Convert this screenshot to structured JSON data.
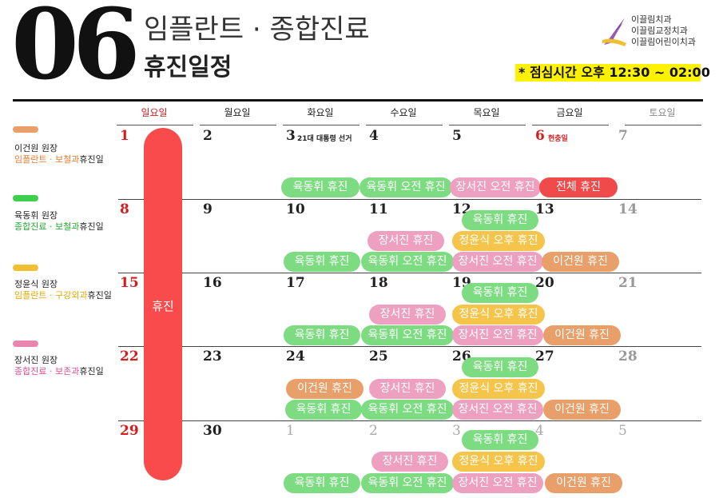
{
  "header": {
    "month": "06",
    "title_line1": "임플란트 · 종합진료",
    "title_line2": "휴진일정",
    "clinics": [
      "이끌림치과",
      "이끌림교정치과",
      "이끌림어린이치과"
    ],
    "lunch_label": "* 점심시간",
    "lunch_time": "오후 12:30 ~ 02:00"
  },
  "weekdays": [
    "일요일",
    "월요일",
    "화요일",
    "수요일",
    "목요일",
    "금요일",
    "토요일"
  ],
  "legend": [
    {
      "color": "#e89f6a",
      "name": "이건원 원장",
      "dept": "임플란트 · 보철과",
      "suffix": "휴진일"
    },
    {
      "color": "#3fcf4f",
      "name": "육동휘 원장",
      "dept": "종합진료 · 보철과",
      "suffix": "휴진일"
    },
    {
      "color": "#f0c030",
      "name": "정윤식 원장",
      "dept": "임플란트 · 구강외과",
      "suffix": "휴진일"
    },
    {
      "color": "#e986b0",
      "name": "장서진 원장",
      "dept": "종합진료 · 보존과",
      "suffix": "휴진일"
    }
  ],
  "sunday_closed": "휴진",
  "weeks": [
    {
      "dates": [
        "1",
        "2",
        "3",
        "4",
        "5",
        "6",
        "7"
      ],
      "notes": {
        "tue": "21대 대통령 선거",
        "fri": "현충일"
      }
    },
    {
      "dates": [
        "8",
        "9",
        "10",
        "11",
        "12",
        "13",
        "14"
      ]
    },
    {
      "dates": [
        "15",
        "16",
        "17",
        "18",
        "19",
        "20",
        "21"
      ]
    },
    {
      "dates": [
        "22",
        "23",
        "24",
        "25",
        "26",
        "27",
        "28"
      ]
    },
    {
      "dates": [
        "29",
        "30",
        "1",
        "2",
        "3",
        "4",
        "5"
      ]
    }
  ],
  "events": {
    "yuk_full": "육동휘 휴진",
    "yuk_am": "육동휘 오전 휴진",
    "jang_am": "장서진 오전 휴진",
    "jang_full": "장서진 휴진",
    "jung_pm": "정윤식 오후 휴진",
    "lee_full": "이건원 휴진",
    "all_full": "전체 휴진"
  }
}
